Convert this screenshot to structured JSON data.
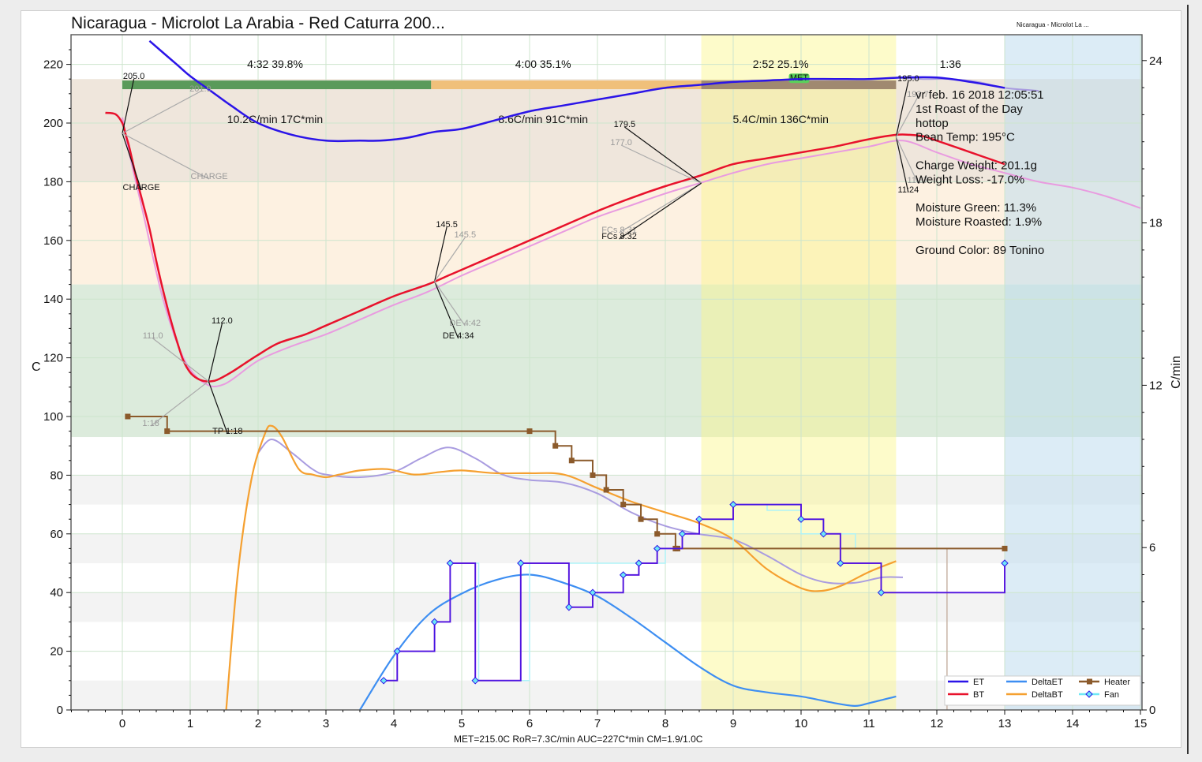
{
  "title": "Nicaragua - Microlot La Arabia - Red Caturra 200...",
  "title_small": "Nicaragua - Microlot La ...",
  "footer": "MET=215.0C   RoR=7.3C/min   AUC=227C*min   CM=1.9/1.0C",
  "event_marker": "MET",
  "colors": {
    "ET": "#2b14e8",
    "BT": "#e8122c",
    "DeltaET": "#3d8ef2",
    "DeltaBT": "#f5a030",
    "Heater": "#8b5a2b",
    "Fan": "#6ee8f5",
    "ET_bg": "#a99ce0",
    "BT_bg": "#e99be0",
    "phase_dry": "#5a9a5a",
    "phase_mid": "#f0c07a",
    "phase_fin": "#a08970"
  },
  "phases": [
    {
      "label": "4:32  39.8%",
      "ror": "10.2C/min  17C*min"
    },
    {
      "label": "4:00  35.1%",
      "ror": "8.6C/min  91C*min"
    },
    {
      "label": "2:52  25.1%",
      "ror": "5.4C/min  136C*min"
    },
    {
      "label": "1:36",
      "ror": ""
    }
  ],
  "annotations": {
    "charge_bt": "205.0",
    "charge_label": "CHARGE",
    "charge_bg": "201.9",
    "charge_label_bg": "CHARGE",
    "tp_bt": "112.0",
    "tp_label": "TP 1:18",
    "tp_bg": "111.0",
    "tp_time_bg": "1:18",
    "de_bt": "145.5",
    "de_label": "DE 4:34",
    "de_bg": "145.5",
    "de_label_bg": "DE 4:42",
    "fcs_bt": "179.5",
    "fcs_label": "FCs 8:32",
    "fcs_bg": "177.0",
    "fcs_label_bg": "FCs 8:31",
    "drop_bt": "195.0",
    "drop_label": "11:24",
    "drop_bg": "193.7",
    "drop_label_bg": "11:37"
  },
  "info": [
    "vr feb. 16 2018 12:05:51",
    "1st Roast of the Day",
    "hottop",
    "Bean Temp: 195°C",
    "",
    "Charge Weight: 201.1g",
    "Weight Loss: -17.0%",
    "",
    "Moisture Green: 11.3%",
    "Moisture Roasted: 1.9%",
    "",
    "Ground Color: 89 Tonino"
  ],
  "legend": [
    "ET",
    "BT",
    "DeltaET",
    "DeltaBT",
    "Heater",
    "Fan"
  ],
  "chart_data": {
    "type": "line",
    "title": "Nicaragua - Microlot La Arabia - Red Caturra 200...",
    "xlabel": "",
    "ylabel": "C",
    "ylabel_right": "C/min",
    "xlim": [
      -0.75,
      15
    ],
    "ylim": [
      0,
      230
    ],
    "ylim_right": [
      0,
      24.1
    ],
    "x_ticks": [
      0,
      1,
      2,
      3,
      4,
      5,
      6,
      7,
      8,
      9,
      10,
      11,
      12,
      13,
      14,
      15
    ],
    "y_ticks": [
      0,
      20,
      40,
      60,
      80,
      100,
      120,
      140,
      160,
      180,
      200,
      220
    ],
    "y_ticks_right": [
      0,
      6,
      12,
      18,
      24
    ],
    "grid": true,
    "legend_position": "bottom-right",
    "series": [
      {
        "name": "ET",
        "axis": "left",
        "x": [
          0.4,
          0.8,
          1.0,
          1.3,
          1.6,
          2.0,
          2.5,
          3.0,
          3.5,
          3.8,
          4.2,
          4.6,
          5.0,
          5.5,
          6.0,
          6.5,
          7.0,
          7.5,
          8.0,
          8.5,
          9.0,
          9.5,
          10.0,
          10.5,
          11.0,
          11.5,
          12.0,
          12.5,
          13.0
        ],
        "y": [
          228,
          220,
          216,
          211,
          206,
          200,
          196,
          194,
          194,
          194,
          195,
          197,
          198,
          201,
          204,
          206,
          208,
          210,
          212,
          213,
          214,
          214.5,
          215,
          215,
          215,
          215.5,
          215.5,
          214,
          212
        ]
      },
      {
        "name": "BT",
        "axis": "left",
        "x": [
          -0.25,
          -0.1,
          0,
          0.05,
          0.1,
          0.15,
          0.2,
          0.3,
          0.4,
          0.5,
          0.6,
          0.7,
          0.8,
          0.9,
          1.0,
          1.1,
          1.2,
          1.3,
          1.4,
          1.6,
          1.8,
          2.0,
          2.3,
          2.7,
          3.0,
          3.5,
          4.0,
          4.5,
          4.8,
          5.0,
          5.5,
          6.0,
          6.5,
          7.0,
          7.5,
          8.0,
          8.5,
          9.0,
          9.5,
          10.0,
          10.5,
          11.0,
          11.4,
          11.6,
          11.8,
          12.0,
          12.5,
          13.0
        ],
        "y": [
          203.5,
          203,
          200,
          196,
          192,
          187,
          182,
          173,
          164,
          153,
          143,
          134,
          126,
          119,
          115,
          113,
          112.1,
          112,
          112.5,
          115,
          118,
          121,
          125,
          128,
          131,
          136,
          141,
          145,
          148,
          150,
          155,
          160,
          165,
          170,
          174.5,
          178.5,
          182,
          186,
          188,
          190,
          192,
          194.5,
          196,
          196,
          195.5,
          194,
          190,
          186
        ]
      },
      {
        "name": "ET (background)",
        "axis": "left",
        "x": [
          11.4,
          11.8,
          12.2,
          12.6,
          13.0,
          13.5
        ],
        "y": [
          215.5,
          215,
          215,
          214,
          212,
          211
        ]
      },
      {
        "name": "BT (background)",
        "axis": "left",
        "x": [
          0,
          0.1,
          0.3,
          0.6,
          0.9,
          1.2,
          1.5,
          2.0,
          2.5,
          3.0,
          3.5,
          4.0,
          4.5,
          5.0,
          5.5,
          6.0,
          6.5,
          7.0,
          7.5,
          8.0,
          8.5,
          9.0,
          9.5,
          10.0,
          10.5,
          11.0,
          11.5,
          12.0,
          12.5,
          13.0,
          13.5,
          14.0,
          14.5,
          15.0
        ],
        "y": [
          201.9,
          190,
          170,
          140,
          120,
          111.5,
          111,
          119,
          124,
          128,
          133,
          138,
          142.5,
          148,
          153,
          158,
          163,
          168,
          172,
          176,
          179.5,
          183,
          186,
          188,
          190,
          192,
          194,
          190,
          186,
          183,
          180,
          178,
          175,
          171
        ]
      },
      {
        "name": "DeltaET",
        "axis": "right",
        "x": [
          3.5,
          4.0,
          4.5,
          5.0,
          5.5,
          6.0,
          6.5,
          7.0,
          7.5,
          8.0,
          8.5,
          9.0,
          9.5,
          10.0,
          10.5,
          10.8,
          11.0,
          11.4
        ],
        "y": [
          0,
          2.0,
          3.5,
          4.3,
          4.8,
          5.0,
          4.7,
          4.2,
          3.4,
          2.5,
          1.6,
          0.9,
          0.65,
          0.5,
          0.25,
          0.15,
          0.25,
          0.5
        ]
      },
      {
        "name": "DeltaBT",
        "axis": "right",
        "x": [
          1.53,
          1.7,
          1.9,
          2.1,
          2.2,
          2.35,
          2.6,
          2.8,
          3.0,
          3.2,
          3.5,
          3.9,
          4.3,
          4.7,
          5.0,
          5.5,
          6.0,
          6.5,
          7.0,
          7.5,
          8.0,
          8.5,
          9.0,
          9.5,
          10.0,
          10.3,
          10.6,
          11.0,
          11.4
        ],
        "y": [
          0,
          5.0,
          8.5,
          10.2,
          10.5,
          10.1,
          8.9,
          8.7,
          8.6,
          8.7,
          8.85,
          8.9,
          8.7,
          8.8,
          8.85,
          8.75,
          8.75,
          8.7,
          8.2,
          7.7,
          7.3,
          6.9,
          6.3,
          5.2,
          4.5,
          4.4,
          4.6,
          5.1,
          5.5
        ]
      },
      {
        "name": "DeltaET (background)",
        "axis": "right",
        "x": [
          2.0,
          2.2,
          2.5,
          2.8,
          3.0,
          3.5,
          4.0,
          4.4,
          4.8,
          5.2,
          5.6,
          6.0,
          6.5,
          7.0,
          7.5,
          8.0,
          8.5,
          9.0,
          9.5,
          10.0,
          10.4,
          10.8,
          11.2,
          11.5
        ],
        "y": [
          9.5,
          10.0,
          9.5,
          8.9,
          8.7,
          8.6,
          8.8,
          9.3,
          9.7,
          9.3,
          8.7,
          8.5,
          8.4,
          8.0,
          7.3,
          6.8,
          6.5,
          6.3,
          5.7,
          5.0,
          4.7,
          4.7,
          4.9,
          4.9
        ]
      }
    ],
    "heater": {
      "name": "Heater",
      "axis": "left",
      "x": [
        0.08,
        0.66,
        6.0,
        6.38,
        6.62,
        6.93,
        7.13,
        7.38,
        7.64,
        7.88,
        8.15,
        8.18,
        13.0
      ],
      "y": [
        100,
        95,
        95,
        90,
        85,
        80,
        75,
        70,
        65,
        60,
        55,
        55,
        55
      ]
    },
    "fan": {
      "name": "Fan",
      "axis": "left",
      "x": [
        3.85,
        4.05,
        4.6,
        4.83,
        5.2,
        5.87,
        6.58,
        6.93,
        7.38,
        7.61,
        7.88,
        8.25,
        8.5,
        9.0,
        10.0,
        10.33,
        10.58,
        11.18,
        13.0
      ],
      "y": [
        10,
        20,
        30,
        50,
        10,
        50,
        35,
        40,
        46,
        50,
        55,
        60,
        65,
        70,
        65,
        60,
        50,
        40,
        50
      ]
    },
    "fan_bg": {
      "name": "Fan (background)",
      "axis": "left",
      "x": [
        4.8,
        5.25,
        5.25,
        6.0,
        7.0,
        8.0,
        9.0,
        9.5,
        10.0,
        10.8,
        11.2
      ],
      "y": [
        50,
        50,
        10,
        50,
        50,
        55,
        70,
        68,
        60,
        55,
        55
      ]
    },
    "heater_bg": {
      "name": "Heater (background)",
      "axis": "left",
      "x": [
        12.15,
        12.15
      ],
      "y": [
        55,
        0
      ]
    }
  }
}
